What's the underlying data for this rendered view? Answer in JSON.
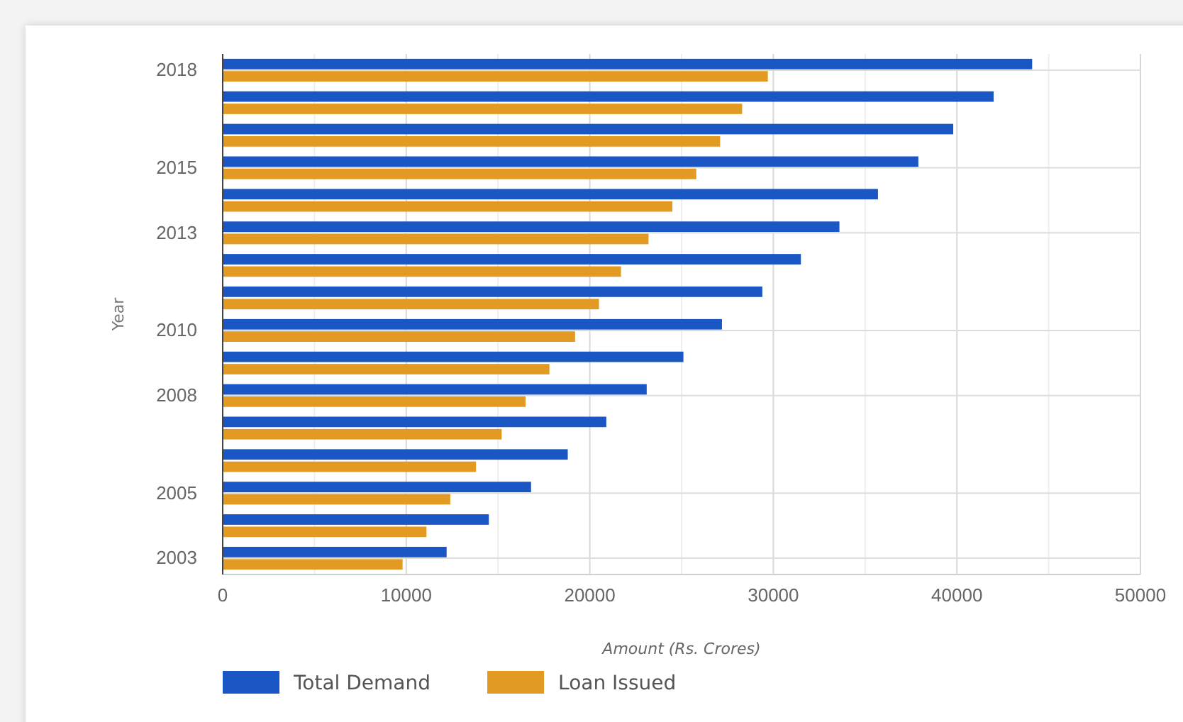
{
  "chart_data": {
    "type": "bar",
    "orientation": "horizontal",
    "xlabel": "Amount (Rs. Crores)",
    "ylabel": "Year",
    "categories": [
      "2018",
      null,
      null,
      "2015",
      null,
      "2013",
      null,
      null,
      "2010",
      null,
      "2008",
      null,
      null,
      "2005",
      null,
      "2003"
    ],
    "series": [
      {
        "name": "Total Demand",
        "color": "#1a56c4",
        "values": [
          44100,
          42000,
          39800,
          37900,
          35700,
          33600,
          31500,
          29400,
          27200,
          25100,
          23100,
          20900,
          18800,
          16800,
          14500,
          12200
        ]
      },
      {
        "name": "Loan Issued",
        "color": "#e39a22",
        "values": [
          29700,
          28300,
          27100,
          25800,
          24500,
          23200,
          21700,
          20500,
          19200,
          17800,
          16500,
          15200,
          13800,
          12400,
          11100,
          9800
        ]
      }
    ],
    "xlim": [
      0,
      50000
    ],
    "xticks": [
      0,
      {
        "value": 5000,
        "label": null
      },
      10000,
      {
        "value": 15000,
        "label": null
      },
      20000,
      {
        "value": 25000,
        "label": null
      },
      30000,
      {
        "value": 35000,
        "label": null
      },
      40000,
      {
        "value": 45000,
        "label": null
      },
      50000
    ],
    "grid": true,
    "legend": "bottom left"
  }
}
